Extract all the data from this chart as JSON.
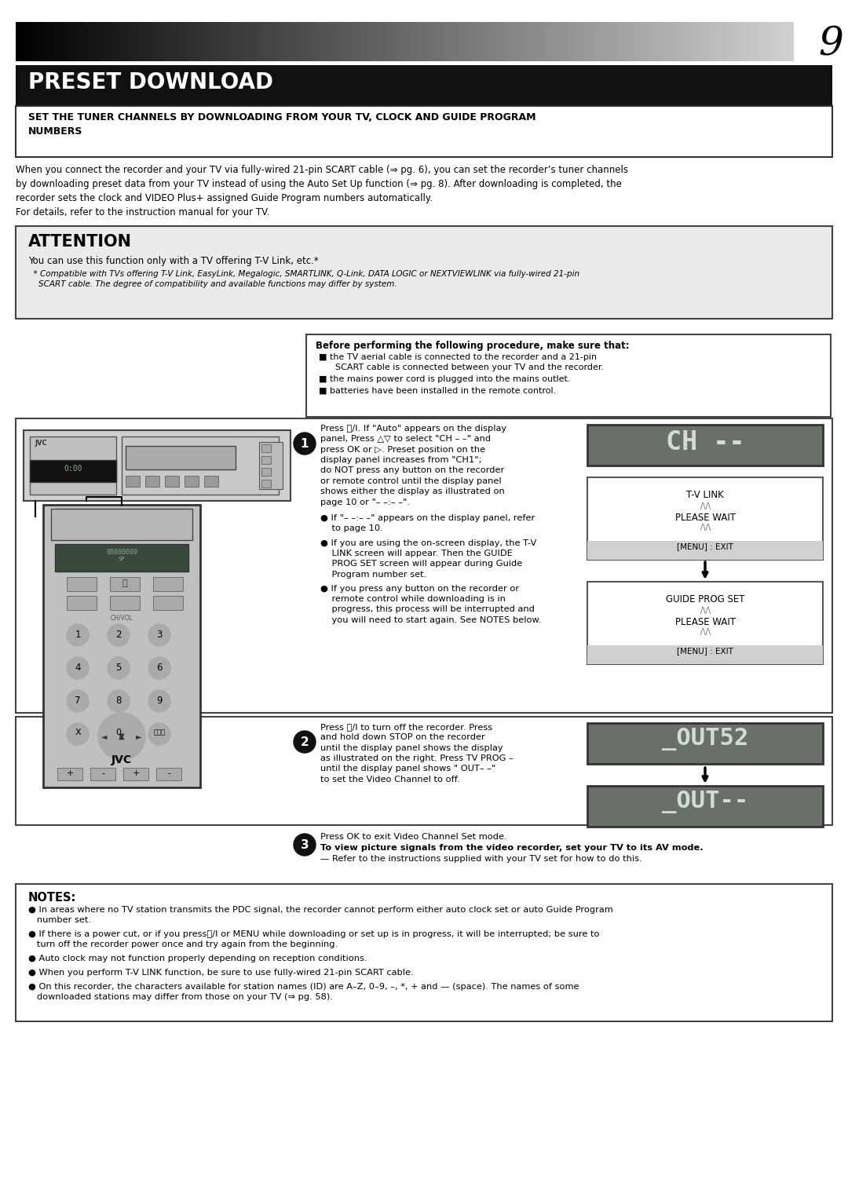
{
  "page_number": "9",
  "title": "PRESET DOWNLOAD",
  "subtitle": "SET THE TUNER CHANNELS BY DOWNLOADING FROM YOUR TV, CLOCK AND GUIDE PROGRAM\nNUMBERS",
  "intro_text": "When you connect the recorder and your TV via fully-wired 21-pin SCART cable (⇒ pg. 6), you can set the recorder’s tuner channels\nby downloading preset data from your TV instead of using the Auto Set Up function (⇒ pg. 8). After downloading is completed, the\nrecorder sets the clock and VIDEO Plus+ assigned Guide Program numbers automatically.\nFor details, refer to the instruction manual for your TV.",
  "attention_title": "ATTENTION",
  "attention_text": "You can use this function only with a TV offering T-V Link, etc.*",
  "attention_footnote": "  * Compatible with TVs offering T-V Link, EasyLink, Megalogic, SMARTLINK, Q-Link, DATA LOGIC or NEXTVIEWLINK via fully-wired 21-pin\n    SCART cable. The degree of compatibility and available functions may differ by system.",
  "before_box_title": "Before performing the following procedure, make sure that:",
  "before_items": [
    "the TV aerial cable is connected to the recorder and a 21-pin\n      SCART cable is connected between your TV and the recorder.",
    "the mains power cord is plugged into the mains outlet.",
    "batteries have been installed in the remote control."
  ],
  "step1_text": "Press ⏻/I. If \"Auto\" appears on the display\npanel, Press △▽ to select \"CH – –\" and\npress OK or ▷. Preset position on the\ndisplay panel increases from \"CH1\";\ndo NOT press any button on the recorder\nor remote control until the display panel\nshows either the display as illustrated on\npage 10 or \"– –:– –\".",
  "step1_bullets": [
    "If \"– –:– –\" appears on the display panel, refer\n    to page 10.",
    "If you are using the on-screen display, the T-V\n    LINK screen will appear. Then the GUIDE\n    PROG SET screen will appear during Guide\n    Program number set.",
    "If you press any button on the recorder or\n    remote control while downloading is in\n    progress, this process will be interrupted and\n    you will need to start again. See NOTES below."
  ],
  "display1_text": "CH --",
  "tv_link_box_title": "T-V LINK",
  "tv_link_box_sub": "PLEASE WAIT",
  "tv_link_menu": "[MENU] : EXIT",
  "guide_prog_box_title": "GUIDE PROG SET",
  "guide_prog_box_sub": "PLEASE WAIT",
  "guide_prog_menu": "[MENU] : EXIT",
  "step2_text": "Press ⏻/I to turn off the recorder. Press\nand hold down STOP on the recorder\nuntil the display panel shows the display\nas illustrated on the right. Press TV PROG –\nuntil the display panel shows \" OUT– –\"\nto set the Video Channel to off.",
  "display2a_text": "_OUT52",
  "display2b_text": "_OUT--",
  "step3_text": "Press OK to exit Video Channel Set mode.",
  "step3_bold": "To view picture signals from the video recorder, set your TV to its AV mode.",
  "step3_note": "— Refer to the instructions supplied with your TV set for how to do this.",
  "notes_title": "NOTES:",
  "notes_items": [
    "● In areas where no TV station transmits the PDC signal, the recorder cannot perform either auto clock set or auto Guide Program\n   number set.",
    "● If there is a power cut, or if you press⏻/I or MENU while downloading or set up is in progress, it will be interrupted; be sure to\n   turn off the recorder power once and try again from the beginning.",
    "● Auto clock may not function properly depending on reception conditions.",
    "● When you perform T-V LINK function, be sure to use fully-wired 21-pin SCART cable.",
    "● On this recorder, the characters available for station names (ID) are A–Z, 0–9, –, *, + and — (space). The names of some\n   downloaded stations may differ from those on your TV (⇒ pg. 58)."
  ],
  "bg_color": "#ffffff",
  "title_bg": "#111111",
  "title_color": "#ffffff",
  "attention_bg": "#ebebeb",
  "display_bg": "#687068",
  "display_text_color": "#d0ddd0",
  "step_circle_color": "#111111"
}
